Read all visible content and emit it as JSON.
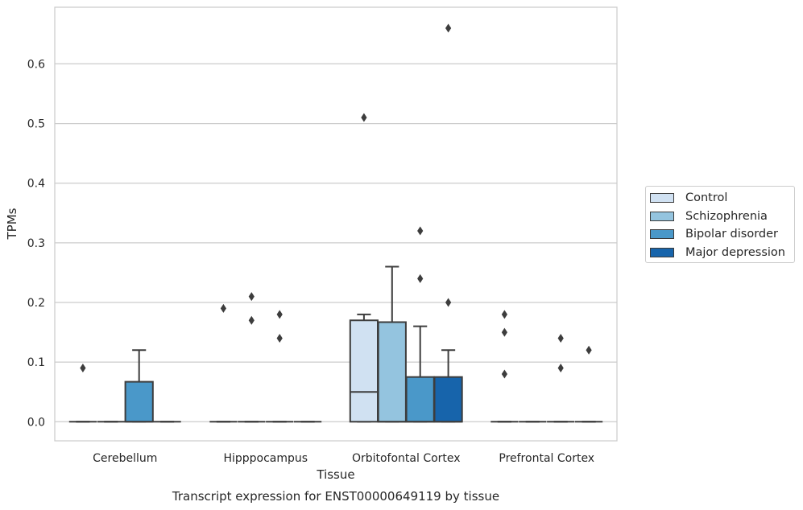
{
  "chart_data": {
    "type": "box",
    "title": "Transcript expression for ENST00000649119 by tissue",
    "xlabel": "Tissue",
    "ylabel": "TPMs",
    "ylim": [
      -0.032,
      0.695
    ],
    "yticks": [
      0.0,
      0.1,
      0.2,
      0.3,
      0.4,
      0.5,
      0.6
    ],
    "ytick_labels": [
      "0.0",
      "0.1",
      "0.2",
      "0.3",
      "0.4",
      "0.5",
      "0.6"
    ],
    "grid": "horizontal",
    "legend_position": "right",
    "categories": [
      "Cerebellum",
      "Hipppocampus",
      "Orbitofontal Cortex",
      "Prefrontal Cortex"
    ],
    "series": [
      {
        "name": "Control",
        "color": "#d0e1f2",
        "boxes": [
          {
            "q1": 0,
            "median": 0,
            "q3": 0,
            "whislo": 0,
            "whishi": 0,
            "fliers": [
              0.09
            ]
          },
          {
            "q1": 0,
            "median": 0,
            "q3": 0,
            "whislo": 0,
            "whishi": 0,
            "fliers": [
              0.19
            ]
          },
          {
            "q1": 0,
            "median": 0.05,
            "q3": 0.17,
            "whislo": 0,
            "whishi": 0.18,
            "fliers": [
              0.51
            ]
          },
          {
            "q1": 0,
            "median": 0,
            "q3": 0,
            "whislo": 0,
            "whishi": 0,
            "fliers": [
              0.08,
              0.15,
              0.18
            ]
          }
        ]
      },
      {
        "name": "Schizophrenia",
        "color": "#94c4df",
        "boxes": [
          {
            "q1": 0,
            "median": 0,
            "q3": 0,
            "whislo": 0,
            "whishi": 0,
            "fliers": []
          },
          {
            "q1": 0,
            "median": 0,
            "q3": 0,
            "whislo": 0,
            "whishi": 0,
            "fliers": [
              0.17,
              0.21
            ]
          },
          {
            "q1": 0,
            "median": 0,
            "q3": 0.167,
            "whislo": 0,
            "whishi": 0.26,
            "fliers": []
          },
          {
            "q1": 0,
            "median": 0,
            "q3": 0,
            "whislo": 0,
            "whishi": 0,
            "fliers": []
          }
        ]
      },
      {
        "name": "Bipolar disorder",
        "color": "#4a98c9",
        "boxes": [
          {
            "q1": 0,
            "median": 0,
            "q3": 0.067,
            "whislo": 0,
            "whishi": 0.12,
            "fliers": []
          },
          {
            "q1": 0,
            "median": 0,
            "q3": 0,
            "whislo": 0,
            "whishi": 0,
            "fliers": [
              0.14,
              0.18
            ]
          },
          {
            "q1": 0,
            "median": 0,
            "q3": 0.075,
            "whislo": 0,
            "whishi": 0.16,
            "fliers": [
              0.24,
              0.32
            ]
          },
          {
            "q1": 0,
            "median": 0,
            "q3": 0,
            "whislo": 0,
            "whishi": 0,
            "fliers": [
              0.09,
              0.14
            ]
          }
        ]
      },
      {
        "name": "Major depression",
        "color": "#1764ab",
        "boxes": [
          {
            "q1": 0,
            "median": 0,
            "q3": 0,
            "whislo": 0,
            "whishi": 0,
            "fliers": []
          },
          {
            "q1": 0,
            "median": 0,
            "q3": 0,
            "whislo": 0,
            "whishi": 0,
            "fliers": []
          },
          {
            "q1": 0,
            "median": 0,
            "q3": 0.075,
            "whislo": 0,
            "whishi": 0.12,
            "fliers": [
              0.2,
              0.66
            ]
          },
          {
            "q1": 0,
            "median": 0,
            "q3": 0,
            "whislo": 0,
            "whishi": 0,
            "fliers": [
              0.12
            ]
          }
        ]
      }
    ]
  }
}
